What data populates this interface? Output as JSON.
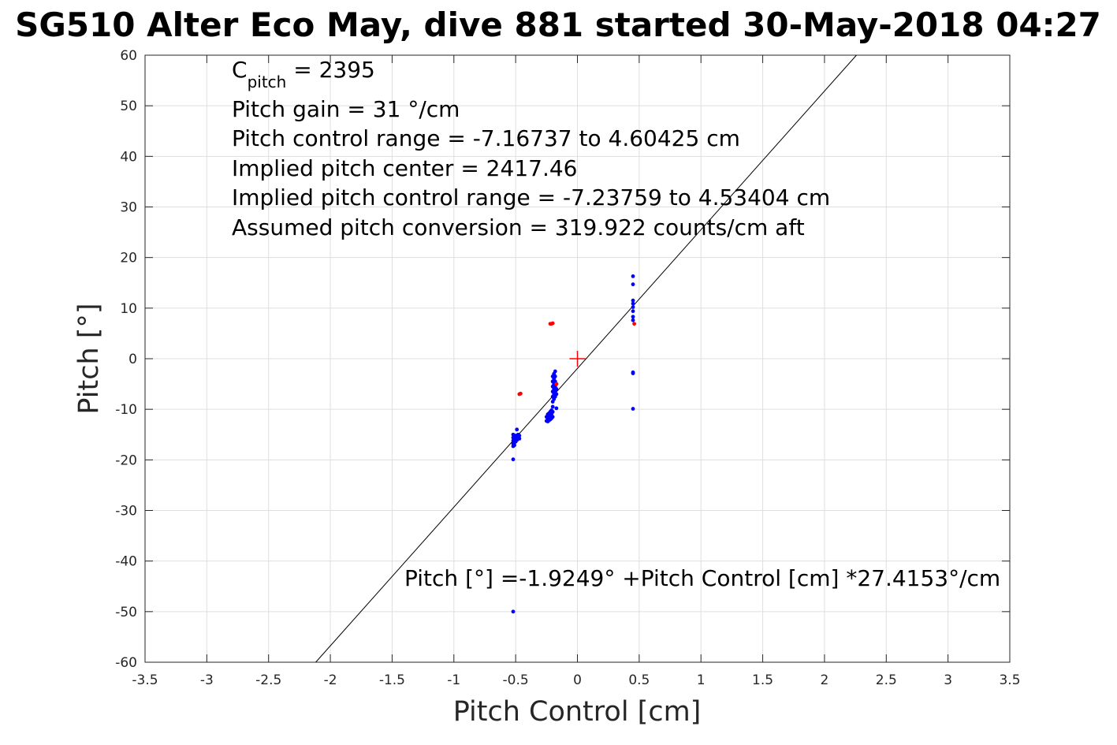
{
  "chart_data": {
    "type": "scatter",
    "title": "SG510 Alter Eco May, dive 881 started 30-May-2018 04:27",
    "xlabel": "Pitch Control [cm]",
    "ylabel": "Pitch [°]",
    "xlim": [
      -3.5,
      3.5
    ],
    "ylim": [
      -60,
      60
    ],
    "xticks": [
      -3.5,
      -3,
      -2.5,
      -2,
      -1.5,
      -1,
      -0.5,
      0,
      0.5,
      1,
      1.5,
      2,
      2.5,
      3,
      3.5
    ],
    "yticks": [
      -60,
      -50,
      -40,
      -30,
      -20,
      -10,
      0,
      10,
      20,
      30,
      40,
      50,
      60
    ],
    "xtick_labels": [
      "-3.5",
      "-3",
      "-2.5",
      "-2",
      "-1.5",
      "-1",
      "-0.5",
      "0",
      "0.5",
      "1",
      "1.5",
      "2",
      "2.5",
      "3",
      "3.5"
    ],
    "ytick_labels": [
      "-60",
      "-50",
      "-40",
      "-30",
      "-20",
      "-10",
      "0",
      "10",
      "20",
      "30",
      "40",
      "50",
      "60"
    ],
    "grid": true,
    "annotations": {
      "c_pitch_main": "C",
      "c_pitch_sub": "pitch",
      "c_pitch_value": " = 2395",
      "lines": [
        "Pitch gain = 31 °/cm",
        "Pitch control range = -7.16737 to 4.60425 cm",
        "Implied pitch center = 2417.46",
        "Implied pitch control range = -7.23759 to 4.53404 cm",
        "Assumed pitch conversion = 319.922 counts/cm aft"
      ],
      "fit_equation": "Pitch [°] =-1.9249° +Pitch Control [cm] *27.4153°/cm"
    },
    "fit_line": {
      "intercept": -1.9249,
      "slope": 27.4153,
      "color": "#000000"
    },
    "center_marker": {
      "x": 0,
      "y": 0,
      "color": "#ff0000"
    },
    "series": [
      {
        "color": "#0000ff",
        "points": [
          [
            -0.52,
            -15.0
          ],
          [
            -0.52,
            -15.6
          ],
          [
            -0.52,
            -16.2
          ],
          [
            -0.52,
            -16.8
          ],
          [
            -0.52,
            -17.3
          ],
          [
            -0.51,
            -15.3
          ],
          [
            -0.51,
            -16.0
          ],
          [
            -0.51,
            -16.6
          ],
          [
            -0.51,
            -17.1
          ],
          [
            -0.5,
            -15.2
          ],
          [
            -0.5,
            -15.8
          ],
          [
            -0.5,
            -16.4
          ],
          [
            -0.49,
            -15.6
          ],
          [
            -0.49,
            -16.1
          ],
          [
            -0.48,
            -15.0
          ],
          [
            -0.48,
            -15.5
          ],
          [
            -0.47,
            -15.2
          ],
          [
            -0.47,
            -15.8
          ],
          [
            -0.49,
            -14.0
          ],
          [
            -0.52,
            -19.9
          ],
          [
            -0.52,
            -50.0
          ],
          [
            -0.25,
            -11.5
          ],
          [
            -0.25,
            -12.3
          ],
          [
            -0.24,
            -11.0
          ],
          [
            -0.24,
            -11.8
          ],
          [
            -0.24,
            -12.4
          ],
          [
            -0.23,
            -10.8
          ],
          [
            -0.23,
            -11.6
          ],
          [
            -0.23,
            -12.2
          ],
          [
            -0.22,
            -10.5
          ],
          [
            -0.22,
            -11.3
          ],
          [
            -0.22,
            -12.0
          ],
          [
            -0.21,
            -10.2
          ],
          [
            -0.21,
            -11.0
          ],
          [
            -0.21,
            -11.8
          ],
          [
            -0.2,
            -3.5
          ],
          [
            -0.2,
            -4.5
          ],
          [
            -0.2,
            -5.5
          ],
          [
            -0.2,
            -6.5
          ],
          [
            -0.2,
            -7.5
          ],
          [
            -0.2,
            -8.5
          ],
          [
            -0.2,
            -9.5
          ],
          [
            -0.2,
            -10.5
          ],
          [
            -0.2,
            -11.5
          ],
          [
            -0.19,
            -3.0
          ],
          [
            -0.19,
            -4.0
          ],
          [
            -0.19,
            -5.0
          ],
          [
            -0.19,
            -6.0
          ],
          [
            -0.19,
            -7.0
          ],
          [
            -0.19,
            -8.0
          ],
          [
            -0.18,
            -2.5
          ],
          [
            -0.18,
            -3.5
          ],
          [
            -0.18,
            -4.5
          ],
          [
            -0.18,
            -5.5
          ],
          [
            -0.18,
            -6.5
          ],
          [
            -0.18,
            -7.5
          ],
          [
            -0.17,
            -5.0
          ],
          [
            -0.17,
            -6.0
          ],
          [
            -0.17,
            -7.0
          ],
          [
            -0.17,
            -9.8
          ],
          [
            0.45,
            16.3
          ],
          [
            0.45,
            14.7
          ],
          [
            0.45,
            11.5
          ],
          [
            0.45,
            10.9
          ],
          [
            0.45,
            10.2
          ],
          [
            0.45,
            9.4
          ],
          [
            0.45,
            8.3
          ],
          [
            0.45,
            7.6
          ],
          [
            0.45,
            -2.7
          ],
          [
            0.45,
            -2.9
          ],
          [
            0.45,
            -9.9
          ]
        ]
      },
      {
        "color": "#ff0000",
        "points": [
          [
            -0.47,
            -7.0
          ],
          [
            -0.46,
            -6.9
          ],
          [
            -0.22,
            6.9
          ],
          [
            -0.21,
            6.9
          ],
          [
            -0.2,
            7.0
          ],
          [
            -0.17,
            -5.0
          ],
          [
            0.46,
            6.9
          ]
        ]
      }
    ]
  }
}
